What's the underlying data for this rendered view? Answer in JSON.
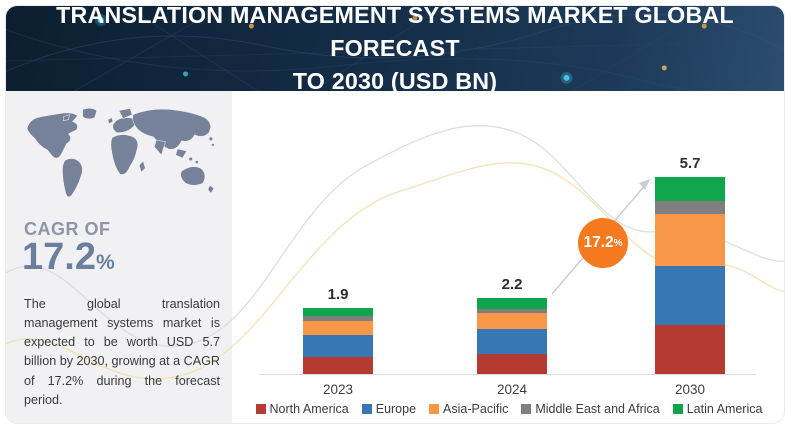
{
  "header": {
    "title_line1": "TRANSLATION MANAGEMENT SYSTEMS MARKET GLOBAL FORECAST",
    "title_line2": "TO 2030 (USD BN)",
    "bg_color": "#142c46"
  },
  "sidebar": {
    "cagr_label": "CAGR OF",
    "cagr_value": "17.2",
    "cagr_unit": "%",
    "description": "The global translation management systems market is expected to be worth USD 5.7 billion by 2030, growing at a CAGR of 17.2% during the forecast period.",
    "map_color": "#76819a",
    "panel_color": "#f1f1f3"
  },
  "chart_data": {
    "type": "bar",
    "stacked": true,
    "title": "Translation Management Systems Market Global Forecast to 2030 (USD BN)",
    "categories": [
      "2023",
      "2024",
      "2030"
    ],
    "series": [
      {
        "name": "North America",
        "color": "#b43a32",
        "values": [
          0.5,
          0.58,
          1.43
        ]
      },
      {
        "name": "Europe",
        "color": "#3778b4",
        "values": [
          0.63,
          0.72,
          1.68
        ]
      },
      {
        "name": "Asia-Pacific",
        "color": "#f89746",
        "values": [
          0.4,
          0.45,
          1.52
        ]
      },
      {
        "name": "Middle East and Africa",
        "color": "#7f7f7f",
        "values": [
          0.14,
          0.13,
          0.36
        ]
      },
      {
        "name": "Latin America",
        "color": "#0ea54c",
        "values": [
          0.23,
          0.32,
          0.71
        ]
      }
    ],
    "totals": [
      "1.9",
      "2.2",
      "5.7"
    ],
    "ylim": [
      0,
      6
    ],
    "grid": false,
    "legend_position": "bottom",
    "annotation": {
      "text": "17.2",
      "unit": "%",
      "color": "#f4791f",
      "meaning": "CAGR between 2024 and 2030"
    }
  }
}
